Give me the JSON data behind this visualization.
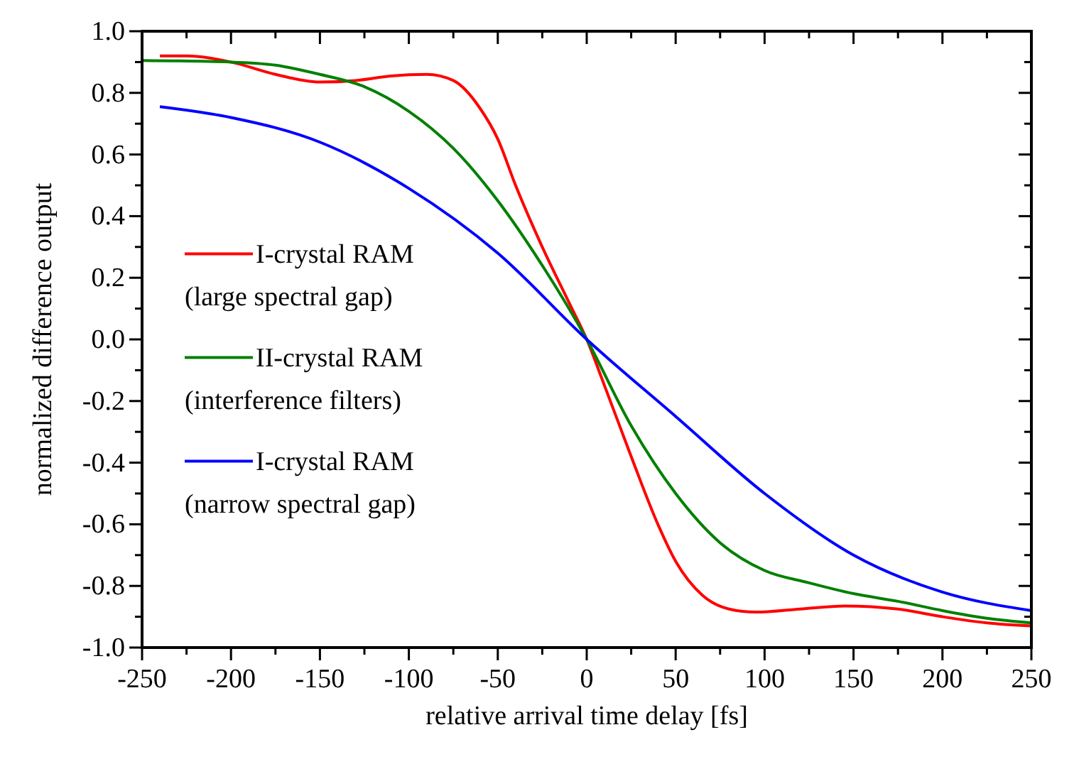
{
  "chart_data": {
    "type": "line",
    "xlabel": "relative arrival time delay [fs]",
    "ylabel": "normalized difference output",
    "xlim": [
      -250,
      250
    ],
    "ylim": [
      -1.0,
      1.0
    ],
    "xticks": [
      {
        "value": -250,
        "label": "-250"
      },
      {
        "value": -225,
        "label": null
      },
      {
        "value": -200,
        "label": "-200"
      },
      {
        "value": -175,
        "label": null
      },
      {
        "value": -150,
        "label": "-150"
      },
      {
        "value": -125,
        "label": null
      },
      {
        "value": -100,
        "label": "-100"
      },
      {
        "value": -75,
        "label": null
      },
      {
        "value": -50,
        "label": "-50"
      },
      {
        "value": -25,
        "label": null
      },
      {
        "value": 0,
        "label": "0"
      },
      {
        "value": 25,
        "label": null
      },
      {
        "value": 50,
        "label": "50"
      },
      {
        "value": 75,
        "label": null
      },
      {
        "value": 100,
        "label": "100"
      },
      {
        "value": 125,
        "label": null
      },
      {
        "value": 150,
        "label": "150"
      },
      {
        "value": 175,
        "label": null
      },
      {
        "value": 200,
        "label": "200"
      },
      {
        "value": 225,
        "label": null
      },
      {
        "value": 250,
        "label": "250"
      }
    ],
    "yticks": [
      {
        "value": -1,
        "label": "-1.0"
      },
      {
        "value": -0.9,
        "label": null
      },
      {
        "value": -0.8,
        "label": "-0.8"
      },
      {
        "value": -0.7,
        "label": null
      },
      {
        "value": -0.6,
        "label": "-0.6"
      },
      {
        "value": -0.5,
        "label": null
      },
      {
        "value": -0.4,
        "label": "-0.4"
      },
      {
        "value": -0.3,
        "label": null
      },
      {
        "value": -0.2,
        "label": "-0.2"
      },
      {
        "value": -0.1,
        "label": null
      },
      {
        "value": 0,
        "label": "0.0"
      },
      {
        "value": 0.1,
        "label": null
      },
      {
        "value": 0.2,
        "label": "0.2"
      },
      {
        "value": 0.3,
        "label": null
      },
      {
        "value": 0.4,
        "label": "0.4"
      },
      {
        "value": 0.5,
        "label": null
      },
      {
        "value": 0.6,
        "label": "0.6"
      },
      {
        "value": 0.7,
        "label": null
      },
      {
        "value": 0.8,
        "label": "0.8"
      },
      {
        "value": 0.9,
        "label": null
      },
      {
        "value": 1,
        "label": "1.0"
      }
    ],
    "grid": false,
    "legend": "left",
    "marker": "none",
    "line_style": "solid",
    "series": [
      {
        "name": "I-crystal RAM\n(large spectral gap)",
        "color": "#ff0000",
        "x": [
          -240,
          -225,
          -200,
          -175,
          -150,
          -130,
          -110,
          -90,
          -75,
          -60,
          -50,
          -40,
          -25,
          -10,
          0,
          10,
          25,
          40,
          50,
          65,
          80,
          95,
          120,
          145,
          175,
          200,
          225,
          250
        ],
        "values": [
          0.92,
          0.92,
          0.9,
          0.86,
          0.835,
          0.84,
          0.855,
          0.86,
          0.84,
          0.75,
          0.65,
          0.5,
          0.3,
          0.12,
          0,
          -0.15,
          -0.38,
          -0.6,
          -0.72,
          -0.83,
          -0.875,
          -0.885,
          -0.875,
          -0.865,
          -0.875,
          -0.9,
          -0.92,
          -0.93
        ]
      },
      {
        "name": "II-crystal RAM\n(interference filters)",
        "color": "#008000",
        "x": [
          -250,
          -200,
          -175,
          -150,
          -125,
          -100,
          -75,
          -50,
          -25,
          0,
          25,
          50,
          75,
          100,
          125,
          150,
          175,
          200,
          225,
          250
        ],
        "values": [
          0.905,
          0.9,
          0.89,
          0.86,
          0.82,
          0.74,
          0.62,
          0.45,
          0.24,
          0,
          -0.28,
          -0.5,
          -0.66,
          -0.75,
          -0.79,
          -0.825,
          -0.85,
          -0.88,
          -0.905,
          -0.92
        ]
      },
      {
        "name": "I-crystal RAM\n(narrow spectral gap)",
        "color": "#0000ff",
        "x": [
          -240,
          -200,
          -150,
          -100,
          -50,
          0,
          50,
          100,
          150,
          200,
          250
        ],
        "values": [
          0.755,
          0.72,
          0.64,
          0.49,
          0.28,
          0,
          -0.25,
          -0.5,
          -0.7,
          -0.82,
          -0.88
        ]
      }
    ]
  }
}
